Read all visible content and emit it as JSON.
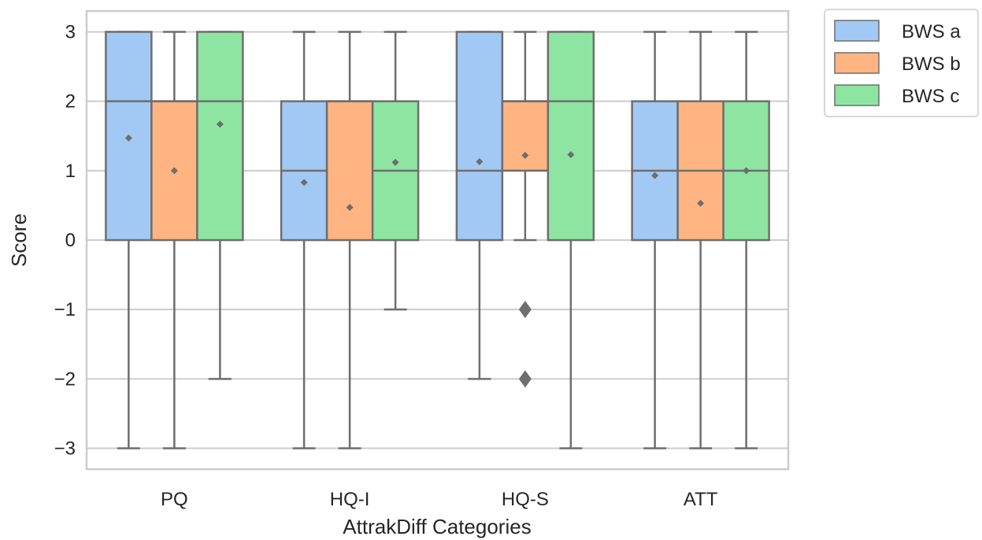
{
  "chart_data": {
    "type": "box",
    "title": "",
    "xlabel": "AttrakDiff Categories",
    "ylabel": "Score",
    "ylim": [
      -3.3,
      3.3
    ],
    "yticks": [
      3,
      2,
      1,
      0,
      -1,
      -2,
      -3
    ],
    "ytick_labels": [
      "3",
      "2",
      "1",
      "0",
      "−1",
      "−2",
      "−3"
    ],
    "categories": [
      "PQ",
      "HQ-I",
      "HQ-S",
      "ATT"
    ],
    "grid": true,
    "legend_position": "outside-top-right",
    "series": [
      {
        "name": "BWS a",
        "color": "#a1c9f4",
        "boxes": [
          {
            "whisker_low": -3,
            "q1": 0,
            "median": 2,
            "q3": 3,
            "whisker_high": 3,
            "mean": 1.47,
            "outliers": []
          },
          {
            "whisker_low": -3,
            "q1": 0,
            "median": 1,
            "q3": 2,
            "whisker_high": 3,
            "mean": 0.83,
            "outliers": []
          },
          {
            "whisker_low": -2,
            "q1": 0,
            "median": 1,
            "q3": 3,
            "whisker_high": 3,
            "mean": 1.13,
            "outliers": []
          },
          {
            "whisker_low": -3,
            "q1": 0,
            "median": 1,
            "q3": 2,
            "whisker_high": 3,
            "mean": 0.93,
            "outliers": []
          }
        ]
      },
      {
        "name": "BWS b",
        "color": "#ffb482",
        "boxes": [
          {
            "whisker_low": -3,
            "q1": 0,
            "median": 2,
            "q3": 2,
            "whisker_high": 3,
            "mean": 1.0,
            "outliers": []
          },
          {
            "whisker_low": -3,
            "q1": 0,
            "median": 2,
            "q3": 2,
            "whisker_high": 3,
            "mean": 0.47,
            "outliers": []
          },
          {
            "whisker_low": 0,
            "q1": 1,
            "median": 2,
            "q3": 2,
            "whisker_high": 3,
            "mean": 1.22,
            "outliers": [
              -1,
              -2
            ]
          },
          {
            "whisker_low": -3,
            "q1": 0,
            "median": 1,
            "q3": 2,
            "whisker_high": 3,
            "mean": 0.53,
            "outliers": []
          }
        ]
      },
      {
        "name": "BWS c",
        "color": "#8de5a1",
        "boxes": [
          {
            "whisker_low": -2,
            "q1": 0,
            "median": 2,
            "q3": 3,
            "whisker_high": 3,
            "mean": 1.67,
            "outliers": []
          },
          {
            "whisker_low": -1,
            "q1": 0,
            "median": 1,
            "q3": 2,
            "whisker_high": 3,
            "mean": 1.12,
            "outliers": []
          },
          {
            "whisker_low": -3,
            "q1": 0,
            "median": 2,
            "q3": 3,
            "whisker_high": 3,
            "mean": 1.23,
            "outliers": []
          },
          {
            "whisker_low": -3,
            "q1": 0,
            "median": 1,
            "q3": 2,
            "whisker_high": 3,
            "mean": 1.0,
            "outliers": []
          }
        ]
      }
    ]
  }
}
